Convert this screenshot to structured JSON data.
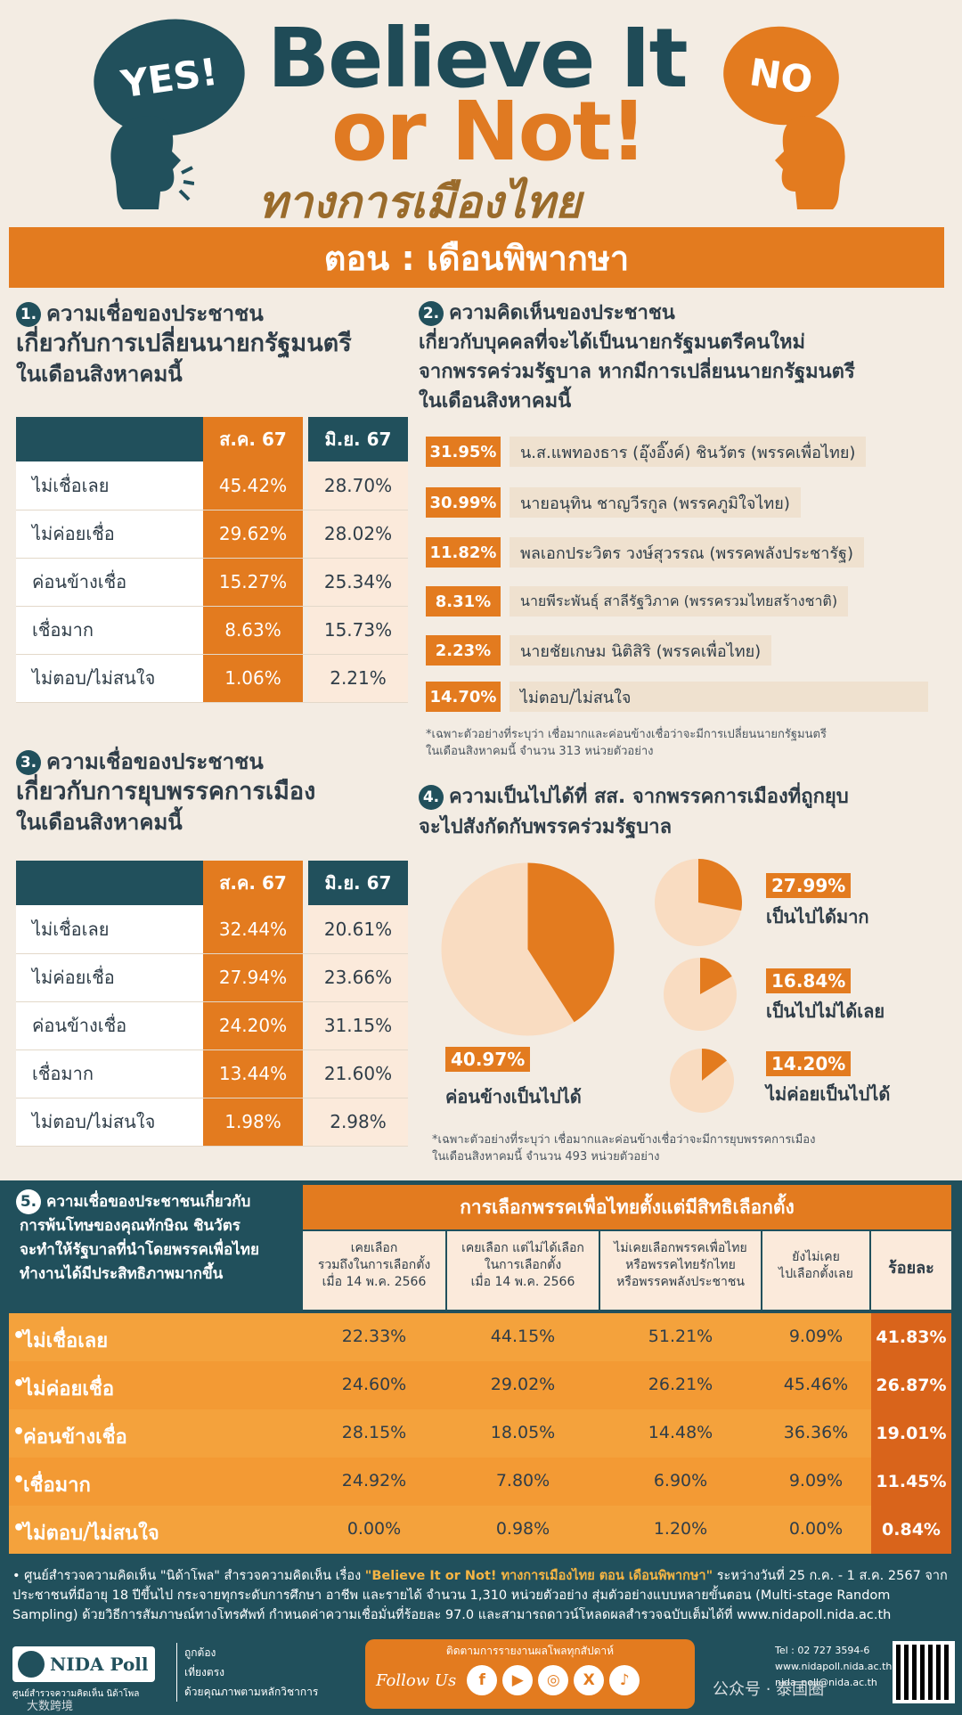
{
  "header": {
    "yes": "YES!",
    "no": "NO",
    "title_line1": "Believe It",
    "title_line2": "or Not!",
    "subtitle": "ทางการเมืองไทย",
    "episode": "ตอน : เดือนพิพากษา"
  },
  "s1": {
    "num": "1.",
    "title1": "ความเชื่อของประชาชน",
    "title2": "เกี่ยวกับการเปลี่ยนนายกรัฐมนตรี",
    "title3": "ในเดือนสิงหาคมนี้",
    "col_aug": "ส.ค. 67",
    "col_jun": "มิ.ย. 67",
    "rows": [
      {
        "label": "ไม่เชื่อเลย",
        "aug": "45.42%",
        "jun": "28.70%"
      },
      {
        "label": "ไม่ค่อยเชื่อ",
        "aug": "29.62%",
        "jun": "28.02%"
      },
      {
        "label": "ค่อนข้างเชื่อ",
        "aug": "15.27%",
        "jun": "25.34%"
      },
      {
        "label": "เชื่อมาก",
        "aug": "8.63%",
        "jun": "15.73%"
      },
      {
        "label": "ไม่ตอบ/ไม่สนใจ",
        "aug": "1.06%",
        "jun": "2.21%"
      }
    ]
  },
  "s2": {
    "num": "2.",
    "title1": "ความคิดเห็นของประชาชน",
    "title2": "เกี่ยวกับบุคคลที่จะได้เป็นนายกรัฐมนตรีคนใหม่",
    "title3": "จากพรรคร่วมรัฐบาล หากมีการเปลี่ยนนายกรัฐมนตรี",
    "title4": "ในเดือนสิงหาคมนี้",
    "items": [
      {
        "pct": "31.95%",
        "name": "น.ส.แพทองธาร (อุ๊งอิ๊งค์) ชินวัตร (พรรคเพื่อไทย)"
      },
      {
        "pct": "30.99%",
        "name": "นายอนุทิน ชาญวีรกูล (พรรคภูมิใจไทย)"
      },
      {
        "pct": "11.82%",
        "name": "พลเอกประวิตร วงษ์สุวรรณ (พรรคพลังประชารัฐ)"
      },
      {
        "pct": "8.31%",
        "name": "นายพีระพันธุ์ สาลีรัฐวิภาค (พรรครวมไทยสร้างชาติ)"
      },
      {
        "pct": "2.23%",
        "name": "นายชัยเกษม นิติสิริ (พรรคเพื่อไทย)"
      },
      {
        "pct": "14.70%",
        "name": "ไม่ตอบ/ไม่สนใจ"
      }
    ],
    "note1": "*เฉพาะตัวอย่างที่ระบุว่า เชื่อมากและค่อนข้างเชื่อว่าจะมีการเปลี่ยนนายกรัฐมนตรี",
    "note2": "ในเดือนสิงหาคมนี้ จำนวน 313 หน่วยตัวอย่าง"
  },
  "s3": {
    "num": "3.",
    "title1": "ความเชื่อของประชาชน",
    "title2": "เกี่ยวกับการยุบพรรคการเมือง",
    "title3": "ในเดือนสิงหาคมนี้",
    "col_aug": "ส.ค. 67",
    "col_jun": "มิ.ย. 67",
    "rows": [
      {
        "label": "ไม่เชื่อเลย",
        "aug": "32.44%",
        "jun": "20.61%"
      },
      {
        "label": "ไม่ค่อยเชื่อ",
        "aug": "27.94%",
        "jun": "23.66%"
      },
      {
        "label": "ค่อนข้างเชื่อ",
        "aug": "24.20%",
        "jun": "31.15%"
      },
      {
        "label": "เชื่อมาก",
        "aug": "13.44%",
        "jun": "21.60%"
      },
      {
        "label": "ไม่ตอบ/ไม่สนใจ",
        "aug": "1.98%",
        "jun": "2.98%"
      }
    ]
  },
  "s4": {
    "num": "4.",
    "title1": "ความเป็นไปได้ที่ สส. จากพรรคการเมืองที่ถูกยุบ",
    "title2": "จะไปสังกัดกับพรรคร่วมรัฐบาล",
    "main_pct": "40.97%",
    "main_label": "ค่อนข้างเป็นไปได้",
    "items": [
      {
        "pct": "27.99%",
        "label": "เป็นไปได้มาก",
        "value": 27.99
      },
      {
        "pct": "16.84%",
        "label": "เป็นไปไม่ได้เลย",
        "value": 16.84
      },
      {
        "pct": "14.20%",
        "label": "ไม่ค่อยเป็นไปได้",
        "value": 14.2
      }
    ],
    "note1": "*เฉพาะตัวอย่างที่ระบุว่า เชื่อมากและค่อนข้างเชื่อว่าจะมีการยุบพรรคการเมือง",
    "note2": "ในเดือนสิงหาคมนี้ จำนวน 493 หน่วยตัวอย่าง"
  },
  "chart_data": {
    "type": "pie",
    "title": "ความเป็นไปได้ที่ สส. จากพรรคการเมืองที่ถูกยุบ จะไปสังกัดกับพรรคร่วมรัฐบาล",
    "categories": [
      "ค่อนข้างเป็นไปได้",
      "เป็นไปได้มาก",
      "เป็นไปไม่ได้เลย",
      "ไม่ค่อยเป็นไปได้"
    ],
    "values": [
      40.97,
      27.99,
      16.84,
      14.2
    ]
  },
  "s5": {
    "num": "5.",
    "title": [
      "ความเชื่อของประชาชนเกี่ยวกับ",
      "การพ้นโทษของคุณทักษิณ ชินวัตร",
      "จะทำให้รัฐบาลที่นำโดยพรรคเพื่อไทย",
      "ทำงานได้มีประสิทธิภาพมากขึ้น"
    ],
    "group_header": "การเลือกพรรคเพื่อไทยตั้งแต่มีสิทธิเลือกตั้ง",
    "cols": [
      [
        "เคยเลือก",
        "รวมถึงในการเลือกตั้ง",
        "เมื่อ 14 พ.ค. 2566"
      ],
      [
        "เคยเลือก แต่ไม่ได้เลือก",
        "ในการเลือกตั้ง",
        "เมื่อ 14 พ.ค. 2566"
      ],
      [
        "ไม่เคยเลือกพรรคเพื่อไทย",
        "หรือพรรคไทยรักไทย",
        "หรือพรรคพลังประชาชน"
      ],
      [
        "ยังไม่เคย",
        "ไปเลือกตั้งเลย"
      ]
    ],
    "pct_header": "ร้อยละ",
    "rows": [
      {
        "label": "ไม่เชื่อเลย",
        "v": [
          "22.33%",
          "44.15%",
          "51.21%",
          "9.09%"
        ],
        "pct": "41.83%"
      },
      {
        "label": "ไม่ค่อยเชื่อ",
        "v": [
          "24.60%",
          "29.02%",
          "26.21%",
          "45.46%"
        ],
        "pct": "26.87%"
      },
      {
        "label": "ค่อนข้างเชื่อ",
        "v": [
          "28.15%",
          "18.05%",
          "14.48%",
          "36.36%"
        ],
        "pct": "19.01%"
      },
      {
        "label": "เชื่อมาก",
        "v": [
          "24.92%",
          "7.80%",
          "6.90%",
          "9.09%"
        ],
        "pct": "11.45%"
      },
      {
        "label": "ไม่ตอบ/ไม่สนใจ",
        "v": [
          "0.00%",
          "0.98%",
          "1.20%",
          "0.00%"
        ],
        "pct": "0.84%"
      }
    ]
  },
  "footer": {
    "note_prefix": "• ศูนย์สำรวจความคิดเห็น \"นิด้าโพล\" สำรวจความคิดเห็น เรื่อง ",
    "note_title": "\"Believe It or Not! ทางการเมืองไทย ตอน เดือนพิพากษา\"",
    "note_rest": " ระหว่างวันที่ 25 ก.ค. - 1 ส.ค. 2567 จากประชาชนที่มีอายุ 18 ปีขึ้นไป กระจายทุกระดับการศึกษา อาชีพ และรายได้ จำนวน 1,310 หน่วยตัวอย่าง สุ่มตัวอย่างแบบหลายขั้นตอน (Multi-stage Random Sampling) ด้วยวิธีการสัมภาษณ์ทางโทรศัพท์ กำหนดค่าความเชื่อมั่นที่ร้อยละ 97.0 และสามารถดาวน์โหลดผลสำรวจฉบับเต็มได้ที่ www.nidapoll.nida.ac.th",
    "logo": "NIDA Poll",
    "logo_sub": "ศูนย์สำรวจความคิดเห็น นิด้าโพล",
    "tag1": "ถูกต้อง",
    "tag2": "เที่ยงตรง",
    "tag3": "ด้วยคุณภาพตามหลักวิชาการ",
    "follow_top": "ติดตามการรายงานผลโพลทุกสัปดาห์",
    "follow": "Follow Us",
    "social": [
      "f",
      "▶",
      "◎",
      "X",
      "♪"
    ],
    "tel": "Tel : 02 727 3594-6",
    "web": "www.nidapoll.nida.ac.th",
    "email": "nida_poll@nida.ac.th",
    "watermark": "公众号 · 泰国圈",
    "wm_left": "大数跨境"
  }
}
